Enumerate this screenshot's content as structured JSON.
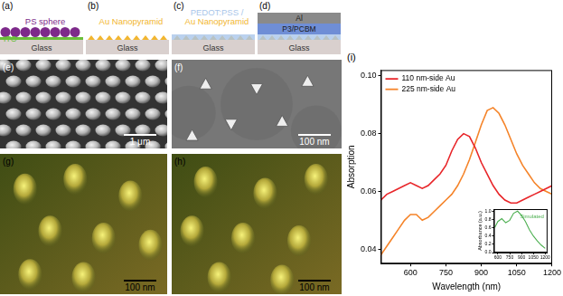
{
  "panels": {
    "schematics": [
      {
        "label": "(a)",
        "layers": [
          {
            "shape": "slab",
            "text": "Glass",
            "text_position": "inside",
            "color": "#d9d0ce"
          },
          {
            "shape": "film",
            "text": "ITO",
            "text_position": "inside",
            "color": "#6abf3a"
          },
          {
            "shape": "spheres",
            "text": "PS sphere",
            "text_position": "above",
            "color": "#7d2a8a"
          }
        ]
      },
      {
        "label": "(b)",
        "layers": [
          {
            "shape": "slab",
            "text": "Glass",
            "text_position": "inside",
            "color": "#d9d0ce"
          },
          {
            "shape": "pyramids",
            "text": "Au Nanopyramid",
            "text_position": "above",
            "color": "#f2b630"
          }
        ]
      },
      {
        "label": "(c)",
        "layers": [
          {
            "shape": "slab",
            "text": "Glass",
            "text_position": "inside",
            "color": "#d9d0ce"
          },
          {
            "shape": "pyramids",
            "text": "Au Nanopyramid",
            "text_position": "above",
            "color": "#f2b630"
          },
          {
            "shape": "film",
            "text": "PEDOT:PSS /",
            "text_position": "above",
            "color": "#a9c6ea"
          }
        ]
      },
      {
        "label": "(d)",
        "layers": [
          {
            "shape": "slab",
            "text": "Glass",
            "text_position": "inside",
            "color": "#d9d0ce"
          },
          {
            "shape": "pyramids",
            "color": "#f2b630"
          },
          {
            "shape": "film",
            "color": "#a9c6ea"
          },
          {
            "shape": "thick",
            "text": "P3/PCBM",
            "text_position": "inside",
            "color": "#6f8ed6"
          },
          {
            "shape": "thick",
            "text": "Al",
            "text_position": "inside",
            "color": "#8a8a8a"
          }
        ]
      }
    ],
    "images": [
      {
        "label": "(e)",
        "kind": "sem_spheres",
        "scale_bar": "1 μm"
      },
      {
        "label": "(f)",
        "kind": "sem_pyramids",
        "scale_bar": "100 nm"
      },
      {
        "label": "(g)",
        "kind": "afm",
        "scale_bar": "100 nm"
      },
      {
        "label": "(h)",
        "kind": "afm",
        "scale_bar": "100 nm"
      }
    ]
  },
  "chart_data": [
    {
      "label": "(i)",
      "type": "line",
      "x_label": "Wavelength (nm)",
      "y_label": "Absorption",
      "x": [
        475,
        500,
        525,
        550,
        575,
        600,
        625,
        650,
        675,
        700,
        725,
        750,
        775,
        800,
        825,
        850,
        875,
        900,
        925,
        950,
        975,
        1000,
        1025,
        1050,
        1075,
        1100,
        1125,
        1150,
        1175,
        1200
      ],
      "series": [
        {
          "name": "110 nm-side Au",
          "color": "#e8262a",
          "values": [
            0.057,
            0.059,
            0.06,
            0.061,
            0.062,
            0.063,
            0.062,
            0.061,
            0.062,
            0.064,
            0.066,
            0.069,
            0.074,
            0.078,
            0.08,
            0.079,
            0.075,
            0.07,
            0.066,
            0.062,
            0.059,
            0.057,
            0.056,
            0.056,
            0.057,
            0.058,
            0.059,
            0.06,
            0.061,
            0.062
          ]
        },
        {
          "name": "225 nm-side Au",
          "color": "#f5842a",
          "values": [
            0.038,
            0.041,
            0.044,
            0.047,
            0.05,
            0.052,
            0.052,
            0.05,
            0.051,
            0.053,
            0.055,
            0.057,
            0.059,
            0.062,
            0.066,
            0.071,
            0.077,
            0.083,
            0.088,
            0.089,
            0.087,
            0.083,
            0.078,
            0.073,
            0.069,
            0.066,
            0.063,
            0.061,
            0.06,
            0.059
          ]
        }
      ],
      "xlim": [
        475,
        1200
      ],
      "xticks": [
        600,
        750,
        900,
        1050,
        1200
      ],
      "ylim": [
        0.035,
        0.102
      ],
      "yticks": [
        0.04,
        0.06,
        0.08,
        {
          "value": 0.1,
          "label": "0.10"
        }
      ],
      "grid": false,
      "legend": "upper left"
    },
    {
      "type": "line",
      "y_label": "Absorbance (a.u.)",
      "x": [
        560,
        600,
        650,
        700,
        750,
        800,
        850,
        900,
        950,
        1000,
        1050,
        1100,
        1150,
        1200
      ],
      "series": [
        {
          "name": "Simulated",
          "color": "#4caf50",
          "values": [
            0.6,
            0.75,
            0.82,
            0.72,
            0.78,
            0.95,
            1.0,
            0.9,
            0.75,
            0.55,
            0.4,
            0.28,
            0.18,
            0.1
          ]
        }
      ],
      "xlim": [
        550,
        1230
      ],
      "xticks": [
        600,
        750,
        900,
        1050,
        1200
      ],
      "ylim": [
        0,
        1.05
      ],
      "yticks": [
        {
          "value": 0,
          "label": "0.0"
        },
        0.2,
        0.4,
        0.6,
        0.8,
        {
          "value": 1,
          "label": "1.0"
        }
      ],
      "grid": false,
      "legend": "upper right"
    }
  ]
}
